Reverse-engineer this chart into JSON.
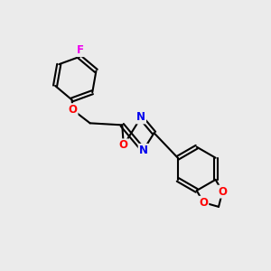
{
  "background_color": "#ebebeb",
  "bond_color": "#000000",
  "bond_width": 1.5,
  "atom_colors": {
    "F": "#ee00ee",
    "O": "#ff0000",
    "N": "#0000ee",
    "C": "#000000"
  },
  "font_size_atom": 8.5
}
